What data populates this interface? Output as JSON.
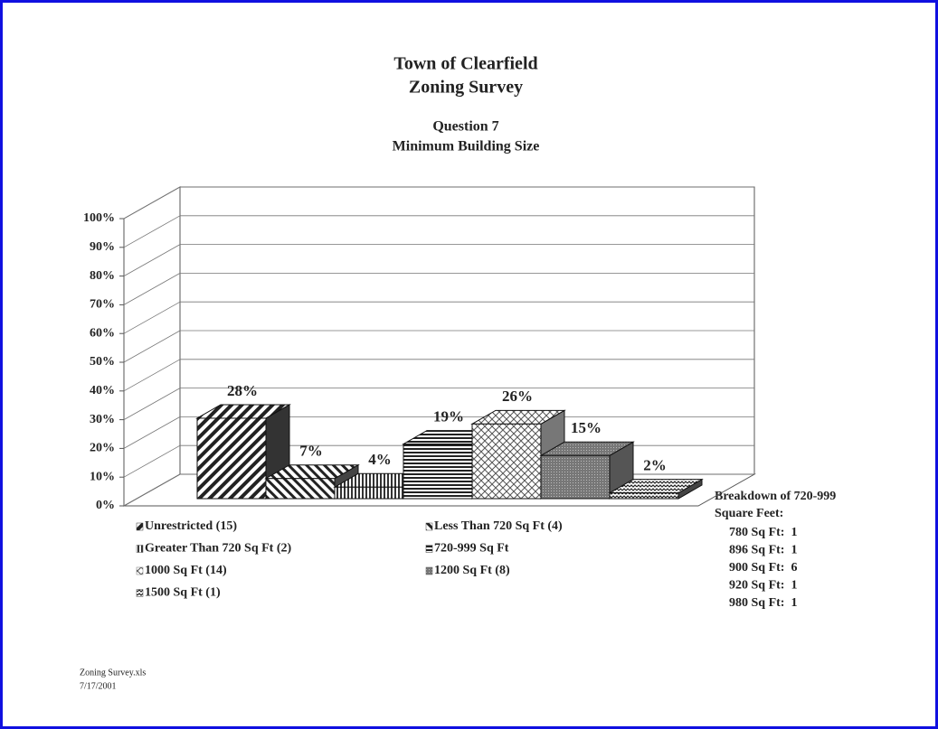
{
  "chart_data": {
    "type": "bar3d",
    "title": [
      "Town of Clearfield",
      "Zoning Survey"
    ],
    "subtitle": [
      "Question 7",
      "Minimum Building Size"
    ],
    "ylim": [
      0,
      100
    ],
    "yticks": [
      {
        "value": 0,
        "label": "0%"
      },
      {
        "value": 10,
        "label": "10%"
      },
      {
        "value": 20,
        "label": "20%"
      },
      {
        "value": 30,
        "label": "30%"
      },
      {
        "value": 40,
        "label": "40%"
      },
      {
        "value": 50,
        "label": "50%"
      },
      {
        "value": 60,
        "label": "60%"
      },
      {
        "value": 70,
        "label": "70%"
      },
      {
        "value": 80,
        "label": "80%"
      },
      {
        "value": 90,
        "label": "90%"
      },
      {
        "value": 100,
        "label": "100%"
      }
    ],
    "grid": true,
    "series": [
      {
        "name": "Unrestricted (15)",
        "color": "#333333",
        "values": [
          28
        ],
        "value_labels": [
          "28%"
        ]
      },
      {
        "name": "Less Than 720 Sq Ft (4)",
        "color": "#444444",
        "values": [
          7
        ],
        "value_labels": [
          "7%"
        ]
      },
      {
        "name": "Greater Than 720 Sq Ft (2)",
        "color": "#555555",
        "values": [
          4
        ],
        "value_labels": [
          "4%"
        ]
      },
      {
        "name": "720-999 Sq Ft",
        "color": "#333333",
        "values": [
          19
        ],
        "value_labels": [
          "19%"
        ]
      },
      {
        "name": "1000 Sq Ft (14)",
        "color": "#777777",
        "values": [
          26
        ],
        "value_labels": [
          "26%"
        ]
      },
      {
        "name": "1200 Sq Ft (8)",
        "color": "#555555",
        "values": [
          15
        ],
        "value_labels": [
          "15%"
        ]
      },
      {
        "name": "1500 Sq Ft (1)",
        "color": "#444444",
        "values": [
          2
        ],
        "value_labels": [
          "2%"
        ]
      }
    ],
    "annotation": {
      "title": [
        "Breakdown of 720-999",
        "Square Feet:"
      ],
      "lines": [
        "780 Sq Ft:  1",
        "896 Sq Ft:  1",
        "900 Sq Ft:  6",
        "920 Sq Ft:  1",
        "980 Sq Ft:  1"
      ]
    },
    "footer": [
      "Zoning Survey.xls",
      "7/17/2001"
    ]
  }
}
